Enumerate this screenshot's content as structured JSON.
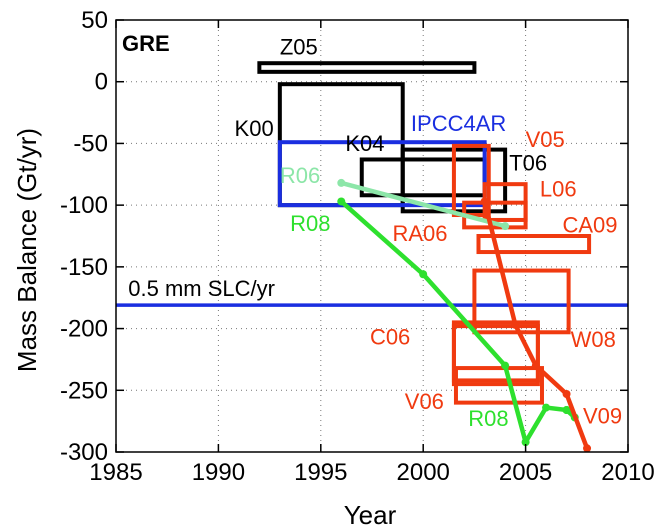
{
  "chart_data": {
    "type": "scatter",
    "title": "GRE",
    "xlabel": "Year",
    "ylabel": "Mass Balance (Gt/yr)",
    "xlim": [
      1985,
      2010
    ],
    "ylim": [
      -300,
      50
    ],
    "xticks": [
      1985,
      1990,
      1995,
      2000,
      2005,
      2010
    ],
    "yticks": [
      50,
      0,
      -50,
      -100,
      -150,
      -200,
      -250,
      -300
    ],
    "grid": "dotted",
    "reference_line": {
      "label": "0.5 mm SLC/yr",
      "y": -181,
      "color": "#1a2ee0"
    },
    "estimates": [
      {
        "label": "Z05",
        "x": [
          1992,
          2002.5
        ],
        "y": [
          8,
          15
        ],
        "color": "#000000",
        "label_x": 1993,
        "label_y": 22,
        "anchor": "start"
      },
      {
        "label": "K00",
        "x": [
          1993,
          1999
        ],
        "y": [
          -100,
          -2
        ],
        "color": "#000000",
        "label_x": 1992.7,
        "label_y": -44,
        "anchor": "end"
      },
      {
        "label": "K04",
        "x": [
          1997,
          2003
        ],
        "y": [
          -92,
          -63
        ],
        "color": "#000000",
        "label_x": 1996.2,
        "label_y": -56,
        "anchor": "start"
      },
      {
        "label": "T06",
        "x": [
          1999,
          2004
        ],
        "y": [
          -105,
          -55
        ],
        "color": "#000000",
        "label_x": 2004.2,
        "label_y": -72,
        "anchor": "start"
      },
      {
        "label": "IPCC4AR",
        "x": [
          1993,
          2003
        ],
        "y": [
          -100,
          -49
        ],
        "color": "#1a2ee0",
        "label_x": 1999.4,
        "label_y": -40,
        "anchor": "start"
      },
      {
        "label": "V05",
        "x": [
          2001.5,
          2003.2
        ],
        "y": [
          -108,
          -52
        ],
        "color": "#f03a10",
        "label_x": 2005,
        "label_y": -53,
        "anchor": "start"
      },
      {
        "label": "L06",
        "x": [
          2003,
          2005
        ],
        "y": [
          -112,
          -83
        ],
        "color": "#f03a10",
        "label_x": 2005.7,
        "label_y": -93,
        "anchor": "start"
      },
      {
        "label": "RA06",
        "x": [
          2002,
          2005
        ],
        "y": [
          -118,
          -98
        ],
        "color": "#f03a10",
        "label_x": 1998.5,
        "label_y": -129,
        "anchor": "start"
      },
      {
        "label": "CA09",
        "x": [
          2002.7,
          2008.1
        ],
        "y": [
          -138,
          -125
        ],
        "color": "#f03a10",
        "label_x": 2006.8,
        "label_y": -122,
        "anchor": "start"
      },
      {
        "label": "W08",
        "x": [
          2002.5,
          2007.1
        ],
        "y": [
          -203,
          -153
        ],
        "color": "#f03a10",
        "label_x": 2007.2,
        "label_y": -215,
        "anchor": "start"
      },
      {
        "label": "C06",
        "x": [
          2001.5,
          2005.6
        ],
        "y": [
          -245,
          -195
        ],
        "color": "#f03a10",
        "label_x": 1997.4,
        "label_y": -213,
        "anchor": "start"
      },
      {
        "label": "V06",
        "x": [
          2001.6,
          2005.8
        ],
        "y": [
          -260,
          -232
        ],
        "color": "#f03a10",
        "label_x": 1999.1,
        "label_y": -265,
        "anchor": "start"
      },
      {
        "label": "",
        "x": [
          2001.5,
          2005.6
        ],
        "y": [
          -242,
          -198
        ],
        "color": "#f03a10",
        "label_x": 0,
        "label_y": 0,
        "anchor": "start"
      }
    ],
    "series": [
      {
        "name": "R06",
        "color": "#8ce6a8",
        "points": [
          [
            1996,
            -82
          ],
          [
            2004,
            -117
          ]
        ],
        "label_x": 1993,
        "label_y": -82,
        "anchor": "start"
      },
      {
        "name": "R08",
        "color": "#2ee02e",
        "points": [
          [
            1996,
            -97
          ],
          [
            2000,
            -156
          ],
          [
            2004,
            -230
          ],
          [
            2005,
            -292
          ],
          [
            2006,
            -264
          ],
          [
            2007,
            -266
          ]
        ],
        "label_x": 1993.5,
        "label_y": -121,
        "anchor": "start"
      },
      {
        "name": "",
        "color": "#2ee02e",
        "points": [
          [
            2007,
            -266
          ],
          [
            2007.4,
            -272
          ]
        ],
        "label_x": 0,
        "label_y": 0,
        "anchor": "start"
      },
      {
        "name": "V09",
        "color": "#f03a10",
        "points": [
          [
            2003,
            -97
          ],
          [
            2004.5,
            -197
          ],
          [
            2005.5,
            -230
          ],
          [
            2007,
            -253
          ],
          [
            2008,
            -297
          ]
        ],
        "label_x": 2007.8,
        "label_y": -277,
        "anchor": "start"
      }
    ],
    "extra_labels": [
      {
        "text": "R08",
        "color": "#2ee02e",
        "x": 2002.2,
        "y": -279
      }
    ]
  }
}
